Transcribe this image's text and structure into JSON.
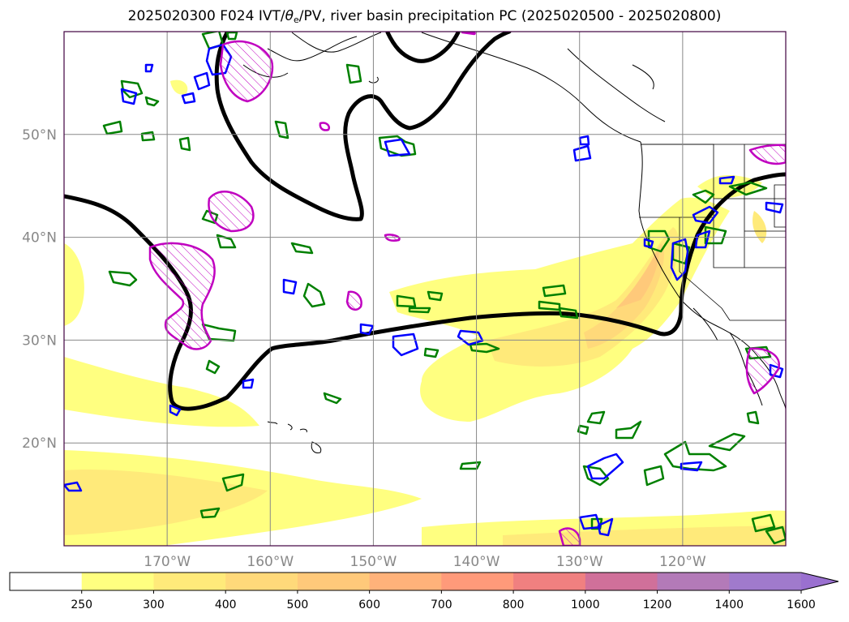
{
  "title": {
    "prefix": "2025020300 F024 IVT/",
    "theta": "θ",
    "theta_sub": "e",
    "suffix": "/PV, river basin precipitation PC (2025020500 - 2025020800)"
  },
  "map": {
    "lon_range": [
      -180,
      -110
    ],
    "lat_range": [
      10,
      60
    ],
    "grid": true,
    "lon_ticks": [
      {
        "lon": -170,
        "label": "170°W"
      },
      {
        "lon": -160,
        "label": "160°W"
      },
      {
        "lon": -150,
        "label": "150°W"
      },
      {
        "lon": -140,
        "label": "140°W"
      },
      {
        "lon": -130,
        "label": "130°W"
      },
      {
        "lon": -120,
        "label": "120°W"
      }
    ],
    "lat_ticks": [
      {
        "lat": 50,
        "label": "50°N"
      },
      {
        "lat": 40,
        "label": "40°N"
      },
      {
        "lat": 30,
        "label": "30°N"
      },
      {
        "lat": 20,
        "label": "20°N"
      }
    ],
    "colors": {
      "pv_contour": "#000000",
      "theta_contour": "#008000",
      "blue_contour": "#0000ff",
      "magenta_contour": "#c000c0",
      "coast": "#000000"
    }
  },
  "colorbar": {
    "levels": [
      "250",
      "300",
      "400",
      "500",
      "600",
      "700",
      "800",
      "1000",
      "1200",
      "1400",
      "1600"
    ],
    "colors": [
      "#ffffff",
      "#ffff80",
      "#ffea7a",
      "#ffd97a",
      "#ffc97a",
      "#ffb27a",
      "#ff9a7a",
      "#f08080",
      "#d0709a",
      "#b37ab8",
      "#a07acc",
      "#9a70d0"
    ],
    "extend": "max"
  }
}
